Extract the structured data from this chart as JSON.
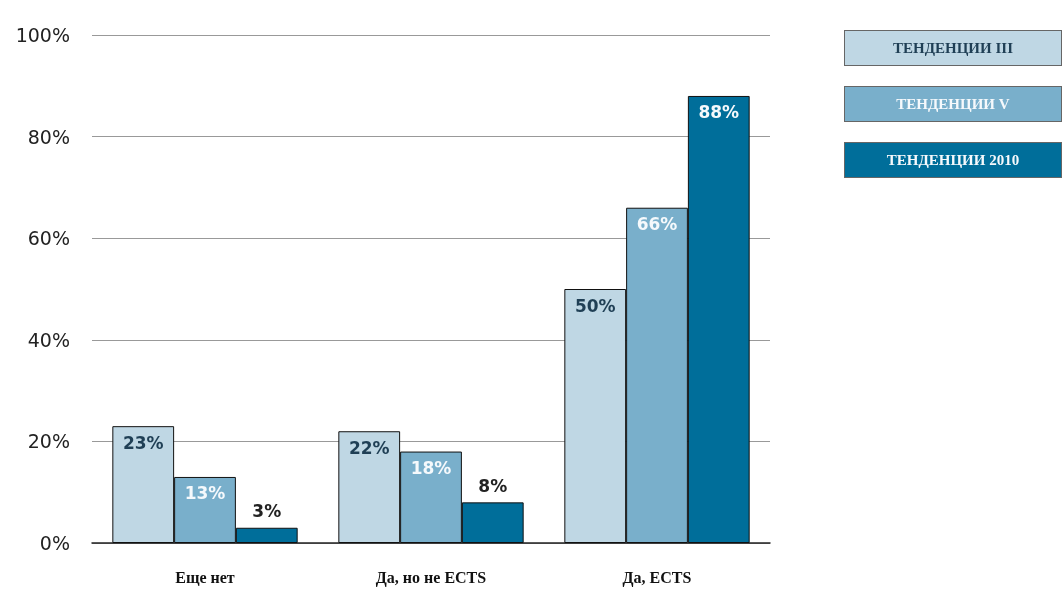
{
  "chart_data": {
    "type": "bar",
    "categories": [
      "Еще нет",
      "Да, но не ECTS",
      "Да, ECTS"
    ],
    "series": [
      {
        "name": "ТЕНДЕНЦИИ III",
        "color": "#bfd7e4",
        "values": [
          23,
          22,
          50
        ],
        "value_labels": [
          "23%",
          "22%",
          "50%"
        ]
      },
      {
        "name": "ТЕНДЕНЦИИ V",
        "color": "#79afcb",
        "values": [
          13,
          18,
          66
        ],
        "value_labels": [
          "13%",
          "18%",
          "66%"
        ]
      },
      {
        "name": "ТЕНДЕНЦИИ 2010",
        "color": "#006e9a",
        "values": [
          3,
          8,
          88
        ],
        "value_labels": [
          "3%",
          "8%",
          "88%"
        ]
      }
    ],
    "ylim": [
      0,
      100
    ],
    "yticks": [
      {
        "value": 0,
        "label": "0%"
      },
      {
        "value": 20,
        "label": "20%"
      },
      {
        "value": 40,
        "label": "40%"
      },
      {
        "value": 60,
        "label": "60%"
      },
      {
        "value": 80,
        "label": "80%"
      },
      {
        "value": 100,
        "label": "100%"
      }
    ],
    "grid": "y",
    "legend": "top right"
  }
}
